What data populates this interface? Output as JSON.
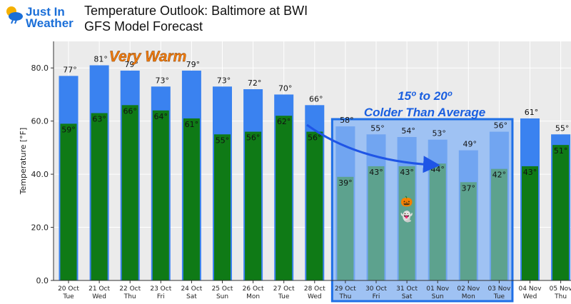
{
  "header": {
    "logo_line1": "Just In",
    "logo_line2": "Weather",
    "title_line1": "Temperature Outlook: Baltimore at BWI",
    "title_line2": "GFS Model Forecast"
  },
  "colors": {
    "high_bar": "#3a82f0",
    "low_bar": "#0f7a16",
    "plot_bg": "#ebebeb",
    "highlight_fill": "#9fc2f3",
    "highlight_border": "#1f6fe6",
    "arrow": "#1f55e6",
    "warm_text": "#f07b0e"
  },
  "chart_data": {
    "type": "bar",
    "ylabel": "Temperature [°F]",
    "ylim": [
      0,
      90
    ],
    "yticks": [
      "0.0",
      "20.0",
      "40.0",
      "60.0",
      "80.0"
    ],
    "grid": true,
    "categories": [
      [
        "20 Oct",
        "Tue"
      ],
      [
        "21 Oct",
        "Wed"
      ],
      [
        "22 Oct",
        "Thu"
      ],
      [
        "23 Oct",
        "Fri"
      ],
      [
        "24 Oct",
        "Sat"
      ],
      [
        "25 Oct",
        "Sun"
      ],
      [
        "26 Oct",
        "Mon"
      ],
      [
        "27 Oct",
        "Tue"
      ],
      [
        "28 Oct",
        "Wed"
      ],
      [
        "29 Oct",
        "Thu"
      ],
      [
        "30 Oct",
        "Fri"
      ],
      [
        "31 Oct",
        "Sat"
      ],
      [
        "01 Nov",
        "Sun"
      ],
      [
        "02 Nov",
        "Mon"
      ],
      [
        "03 Nov",
        "Tue"
      ],
      [
        "04 Nov",
        "Wed"
      ],
      [
        "05 Nov",
        "Thu"
      ]
    ],
    "series": [
      {
        "values": [
          77,
          81,
          79,
          73,
          79,
          73,
          72,
          70,
          66,
          58,
          55,
          54,
          53,
          49,
          56,
          61,
          55
        ],
        "labels": [
          "77°",
          "81°",
          "79°",
          "73°",
          "79°",
          "73°",
          "72°",
          "70°",
          "66°",
          "58°",
          "55°",
          "54°",
          "53°",
          "49°",
          "56°",
          "61°",
          "55°"
        ]
      },
      {
        "values": [
          59,
          63,
          66,
          64,
          61,
          55,
          56,
          62,
          56,
          39,
          43,
          43,
          44,
          37,
          42,
          43,
          51
        ],
        "labels": [
          "59°",
          "63°",
          "66°",
          "64°",
          "61°",
          "55°",
          "56°",
          "62°",
          "56°",
          "39°",
          "43°",
          "43°",
          "44°",
          "37°",
          "42°",
          "43°",
          "51°"
        ]
      }
    ],
    "annotations": {
      "warm": "Very Warm",
      "cold_line1": "15º to 20º",
      "cold_line2": "Colder Than Average",
      "highlight_categories": [
        "29 Oct",
        "03 Nov"
      ],
      "emoji_pumpkin": "🎃",
      "emoji_ghost": "👻"
    }
  }
}
